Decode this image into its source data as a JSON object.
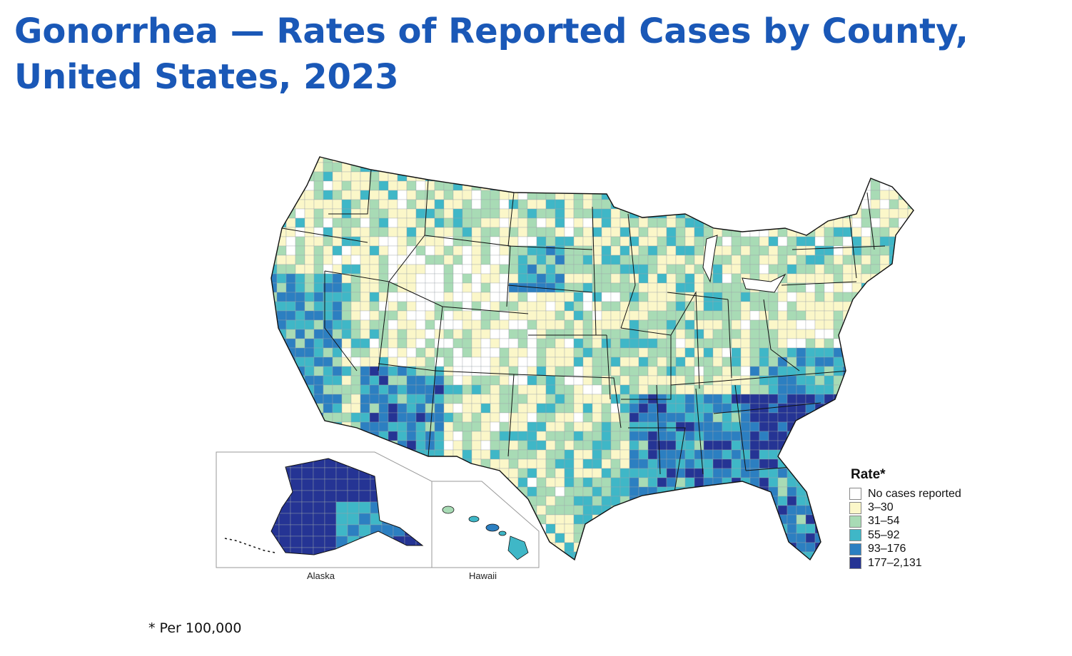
{
  "title": "Gonorrhea — Rates of Reported Cases by County, United States, 2023",
  "legend": {
    "title": "Rate*",
    "items": [
      {
        "label": "No cases reported",
        "color": "#ffffff"
      },
      {
        "label": "3–30",
        "color": "#fbf7c9"
      },
      {
        "label": "31–54",
        "color": "#a8dbb5"
      },
      {
        "label": "55–92",
        "color": "#3fb7c7"
      },
      {
        "label": "93–176",
        "color": "#2c7fc1"
      },
      {
        "label": "177–2,131",
        "color": "#253494"
      }
    ]
  },
  "insets": {
    "alaska_label": "Alaska",
    "hawaii_label": "Hawaii"
  },
  "footnote": "* Per 100,000"
}
